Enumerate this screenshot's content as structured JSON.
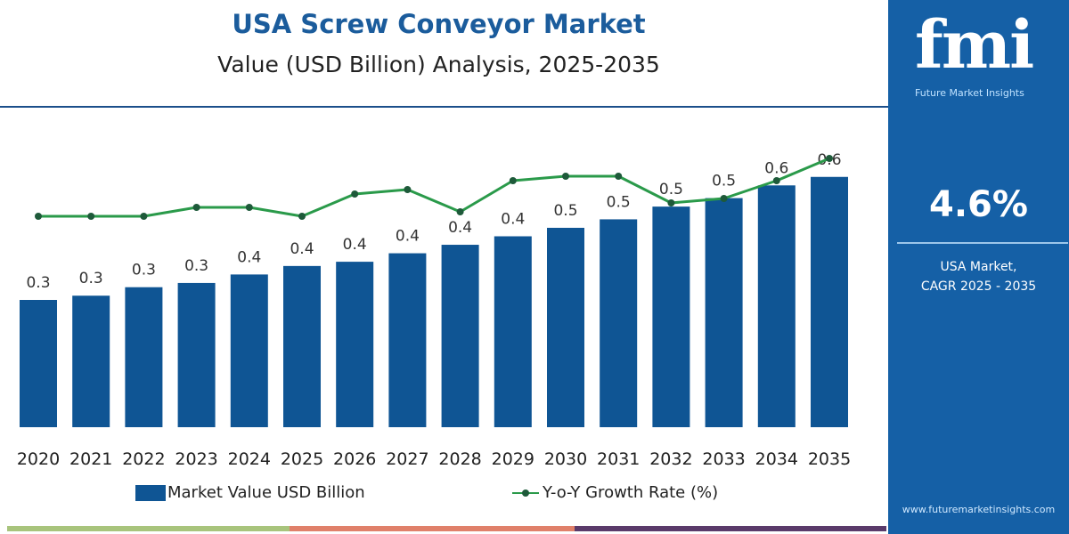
{
  "header": {
    "title": "USA Screw Conveyor Market",
    "subtitle": "Value (USD Billion) Analysis, 2025-2035"
  },
  "chart_data": {
    "type": "bar",
    "categories": [
      "2020",
      "2021",
      "2022",
      "2023",
      "2024",
      "2025",
      "2026",
      "2027",
      "2028",
      "2029",
      "2030",
      "2031",
      "2032",
      "2033",
      "2034",
      "2035"
    ],
    "series": [
      {
        "name": "Market Value USD Billion",
        "type": "bar",
        "color": "#0f5594",
        "values": [
          0.3,
          0.31,
          0.33,
          0.34,
          0.36,
          0.38,
          0.39,
          0.41,
          0.43,
          0.45,
          0.47,
          0.49,
          0.52,
          0.54,
          0.57,
          0.59
        ],
        "labels": [
          "0.3",
          "0.3",
          "0.3",
          "0.3",
          "0.4",
          "0.4",
          "0.4",
          "0.4",
          "0.4",
          "0.4",
          "0.5",
          "0.5",
          "0.5",
          "0.5",
          "0.6",
          "0.6"
        ]
      },
      {
        "name": "Y-o-Y Growth Rate (%)",
        "type": "line",
        "color": "#2a9a4a",
        "marker_color": "#1e5a3a",
        "values": [
          4.0,
          4.0,
          4.0,
          4.2,
          4.2,
          4.0,
          4.5,
          4.6,
          4.1,
          4.8,
          4.9,
          4.9,
          4.3,
          4.4,
          4.8,
          5.3
        ]
      }
    ],
    "ylim": [
      0,
      0.65
    ],
    "grid": false,
    "legend": "bottom"
  },
  "legend": {
    "bar": "Market Value USD Billion",
    "line": "Y-o-Y Growth Rate (%)"
  },
  "panel": {
    "logo": "fmi",
    "logo_sub": "Future Market Insights",
    "cagr": "4.6%",
    "label1": "USA Market,",
    "label2": "CAGR 2025 - 2035",
    "url": "www.futuremarketinsights.com",
    "bg": "#1560a6"
  },
  "strip_colors": [
    "#a8c47c",
    "#e0806a",
    "#5a3a6a"
  ]
}
